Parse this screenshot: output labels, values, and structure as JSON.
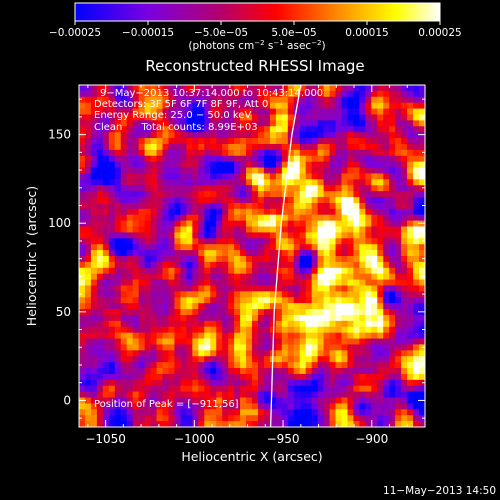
{
  "chart_data": {
    "type": "heatmap",
    "title": "Reconstructed RHESSI Image",
    "xlabel": "Heliocentric X (arcsec)",
    "ylabel": "Heliocentric Y (arcsec)",
    "xlim": [
      -1065,
      -870
    ],
    "ylim": [
      -15,
      178
    ],
    "x_ticks": [
      -1050,
      -1000,
      -950,
      -900
    ],
    "y_ticks": [
      0,
      50,
      100,
      150
    ],
    "x_tick_labels": [
      "−1050",
      "−1000",
      "−950",
      "−900"
    ],
    "y_tick_labels": [
      "0",
      "50",
      "100",
      "150"
    ],
    "colorbar": {
      "range": [
        -0.00025,
        0.00025
      ],
      "ticks": [
        -0.00025,
        -0.00015,
        -5e-05,
        5e-05,
        0.00015,
        0.00025
      ],
      "tick_labels": [
        "−0.00025",
        "−0.00015",
        "−5.0e−05",
        "5.0e−05",
        "0.00015",
        "0.00025"
      ],
      "colormap_stops": [
        "#0000ff",
        "#7a00e0",
        "#b4006c",
        "#ff0000",
        "#ff8a00",
        "#ffff00",
        "#ffffff"
      ],
      "unit_label": {
        "open": "(photons cm",
        "exp1": "−2",
        "mid1": " s",
        "exp2": "−1",
        "mid2": " asec",
        "exp3": "−2",
        "close": ")"
      }
    },
    "limb_curve": {
      "description_points": [
        [
          -957,
          -15
        ],
        [
          -955,
          50
        ],
        [
          -951,
          100
        ],
        [
          -945,
          150
        ],
        [
          -940,
          178
        ]
      ]
    },
    "peak": {
      "x": -911,
      "y": 56
    },
    "annotations": [
      "9−May−2013 10:37:14.000 to 10:43:14.000",
      "Detectors: 3F 5F 6F 7F 8F 9F, Att 0",
      "Energy Range: 25.0 − 50.0 keV",
      "Clean      Total counts: 8.99E+03"
    ],
    "peak_label": "Position of Peak = [−911,56]"
  },
  "footer": {
    "timestamp": "11−May−2013 14:50"
  }
}
